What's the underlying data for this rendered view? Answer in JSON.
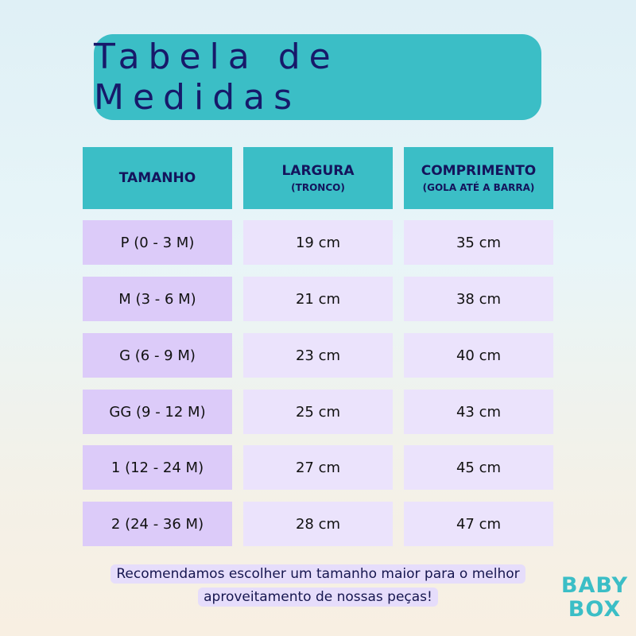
{
  "title": "Tabela de Medidas",
  "headers": [
    {
      "main": "TAMANHO",
      "sub": ""
    },
    {
      "main": "LARGURA",
      "sub": "(TRONCO)"
    },
    {
      "main": "COMPRIMENTO",
      "sub": "(GOLA ATÉ A BARRA)"
    }
  ],
  "rows": [
    {
      "size": "P  (0 - 3 M)",
      "largura": "19 cm",
      "comprimento": "35 cm"
    },
    {
      "size": "M  (3 - 6 M)",
      "largura": "21 cm",
      "comprimento": "38 cm"
    },
    {
      "size": "G  (6 - 9 M)",
      "largura": "23 cm",
      "comprimento": "40 cm"
    },
    {
      "size": "GG  (9 - 12 M)",
      "largura": "25 cm",
      "comprimento": "43 cm"
    },
    {
      "size": "1  (12 - 24 M)",
      "largura": "27 cm",
      "comprimento": "45 cm"
    },
    {
      "size": "2  (24 - 36 M)",
      "largura": "28 cm",
      "comprimento": "47 cm"
    }
  ],
  "note": {
    "line1": "Recomendamos escolher um tamanho maior para o melhor",
    "line2": "aproveitamento de nossas peças!"
  },
  "logo": {
    "line1": "BABY",
    "line2": "BOX"
  },
  "colors": {
    "teal": "#3bbec6",
    "navy": "#14145c",
    "lavender": "#dccbf9",
    "light_lavender": "#ebe3fc"
  }
}
